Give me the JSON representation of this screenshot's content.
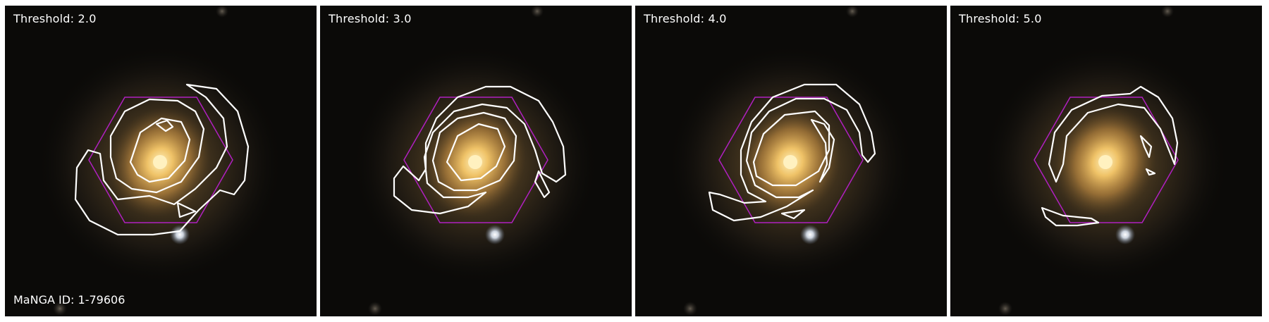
{
  "panels": [
    {
      "threshold_label": "Threshold: 2.0"
    },
    {
      "threshold_label": "Threshold: 3.0"
    },
    {
      "threshold_label": "Threshold: 4.0"
    },
    {
      "threshold_label": "Threshold: 5.0"
    }
  ],
  "manga_id_label": "MaNGA ID: 1-79606",
  "colors": {
    "hexagon": "#b020c0",
    "contour": "#ffffff",
    "galaxy_core": "#f6c86a",
    "background": "#0b0a08"
  }
}
